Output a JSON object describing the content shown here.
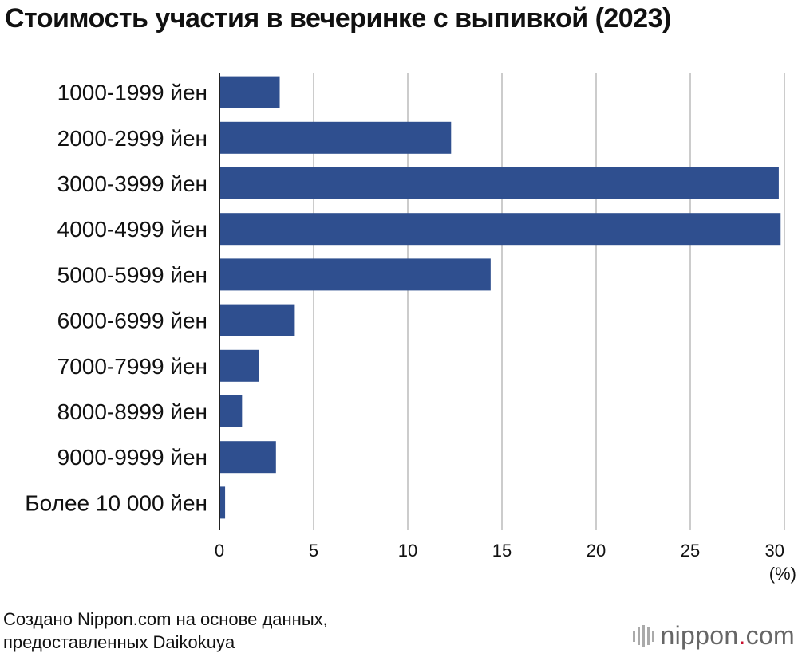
{
  "title": "Стоимость участия в вечеринке с выпивкой (2023)",
  "source": "Создано Nippon.com на основе данных, предоставленных Daikokuya",
  "logo": {
    "name": "nippon",
    "dot": ".",
    "suffix": "com"
  },
  "colors": {
    "bar": "#2f4f8f",
    "grid": "#cccccc",
    "axis": "#222222",
    "logo_dot": "#c8102e"
  },
  "chart_data": {
    "type": "bar",
    "orientation": "horizontal",
    "categories": [
      "1000-1999 йен",
      "2000-2999 йен",
      "3000-3999 йен",
      "4000-4999 йен",
      "5000-5999 йен",
      "6000-6999 йен",
      "7000-7999 йен",
      "8000-8999 йен",
      "9000-9999 йен",
      "Более 10 000 йен"
    ],
    "values": [
      3.2,
      12.3,
      29.7,
      29.8,
      14.4,
      4.0,
      2.1,
      1.2,
      3.0,
      0.3
    ],
    "xlim": [
      0,
      30
    ],
    "xticks": [
      0,
      5,
      10,
      15,
      20,
      25,
      30
    ],
    "xunit": "(%)",
    "grid": true
  }
}
